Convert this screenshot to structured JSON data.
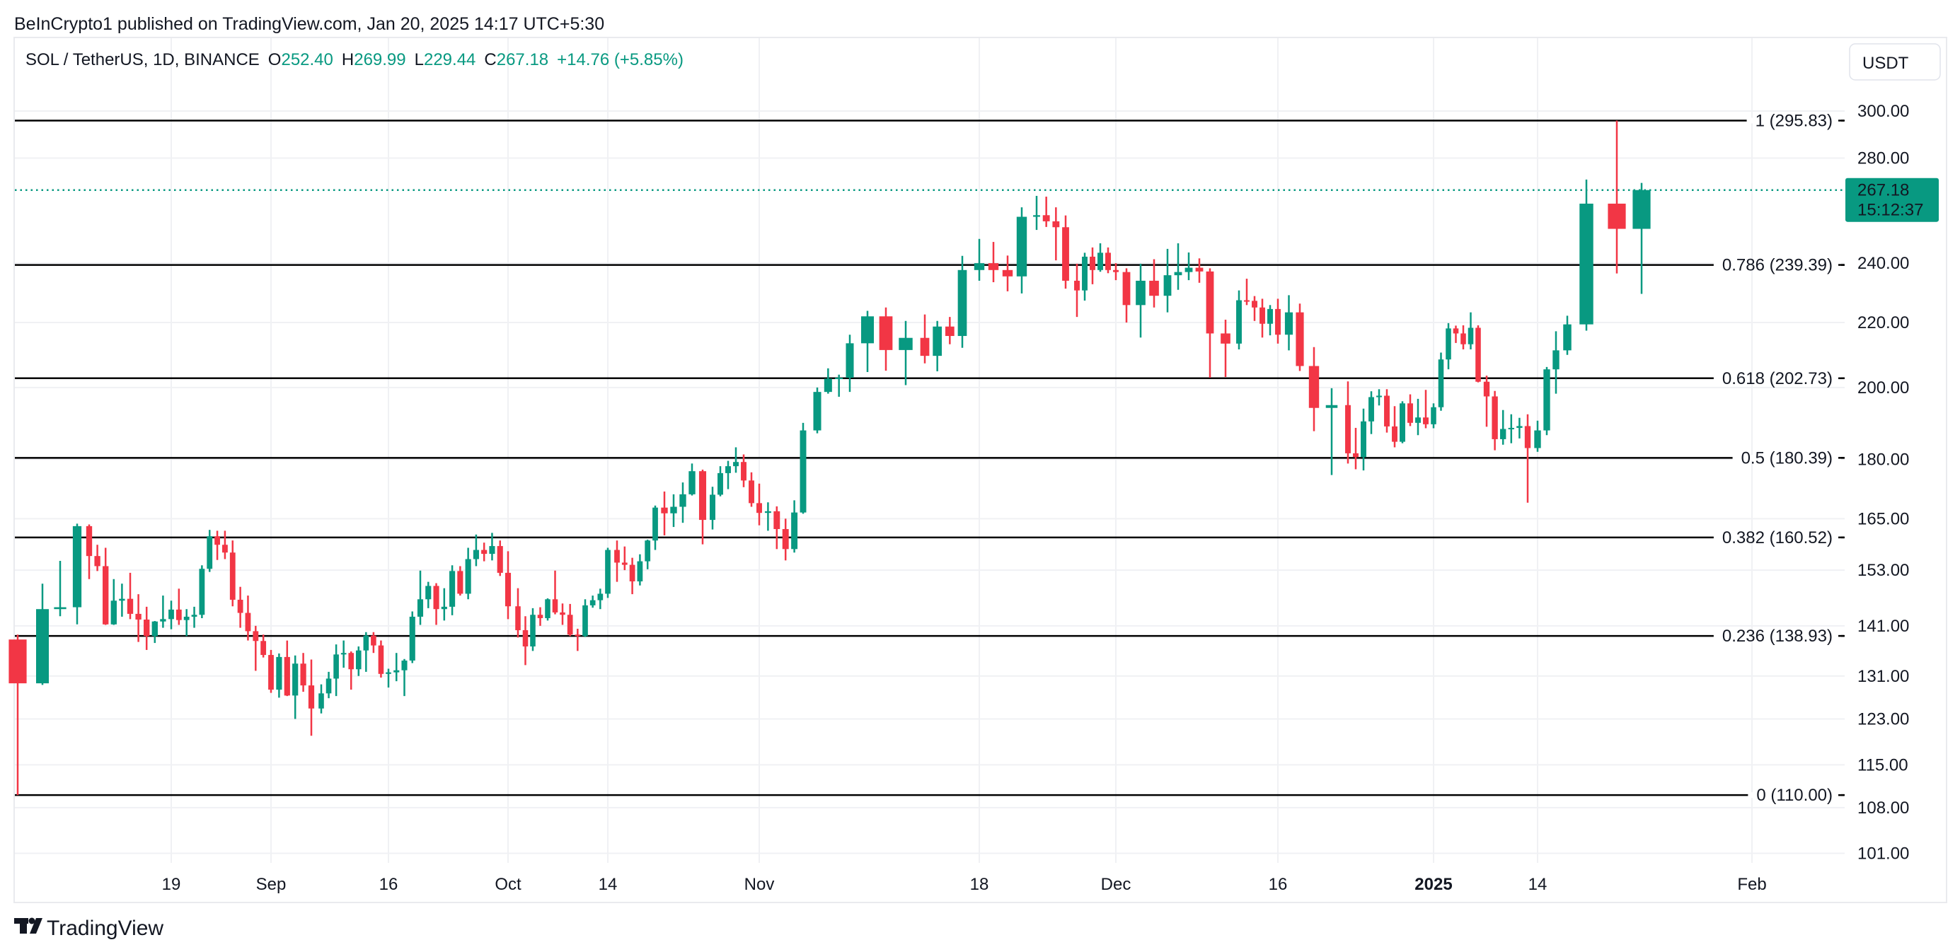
{
  "header": {
    "published": "BeInCrypto1 published on TradingView.com, Jan 20, 2025 14:17 UTC+5:30"
  },
  "legend": {
    "symbol": "SOL / TetherUS, 1D, BINANCE",
    "o_label": "O",
    "o_value": "252.40",
    "h_label": "H",
    "h_value": "269.99",
    "l_label": "L",
    "l_value": "229.44",
    "c_label": "C",
    "c_value": "267.18",
    "change": "+14.76 (+5.85%)"
  },
  "currency_button": "USDT",
  "last_price": {
    "value": "267.18",
    "countdown": "15:12:37",
    "price": 267.18
  },
  "footer": {
    "brand": "TradingView"
  },
  "colors": {
    "up": "#089981",
    "down": "#F23645",
    "fib_line": "#000000",
    "grid": "#F0F1F4",
    "text": "#131722"
  },
  "chart_data": {
    "type": "candlestick",
    "title": "SOL / TetherUS, 1D, BINANCE",
    "y_scale": "log",
    "ylim": [
      98,
      312
    ],
    "grid": true,
    "price_ticks": [
      "300.00",
      "280.00",
      "240.00",
      "220.00",
      "200.00",
      "180.00",
      "165.00",
      "153.00",
      "141.00",
      "131.00",
      "123.00",
      "115.00",
      "108.00",
      "101.00"
    ],
    "time_ticks": [
      {
        "label": "19",
        "date": "2024-08-19",
        "bold": false
      },
      {
        "label": "Sep",
        "date": "2024-09-01",
        "bold": false
      },
      {
        "label": "16",
        "date": "2024-09-16",
        "bold": false
      },
      {
        "label": "Oct",
        "date": "2024-10-01",
        "bold": false
      },
      {
        "label": "14",
        "date": "2024-10-14",
        "bold": false
      },
      {
        "label": "Nov",
        "date": "2024-11-01",
        "bold": false
      },
      {
        "label": "18",
        "date": "2024-11-18",
        "bold": false
      },
      {
        "label": "Dec",
        "date": "2024-12-01",
        "bold": false
      },
      {
        "label": "16",
        "date": "2024-12-16",
        "bold": false
      },
      {
        "label": "2025",
        "date": "2025-01-01",
        "bold": true
      },
      {
        "label": "14",
        "date": "2025-01-14",
        "bold": false
      },
      {
        "label": "Feb",
        "date": "2025-02-01",
        "bold": false
      }
    ],
    "fib_levels": [
      {
        "label": "1 (295.83)",
        "price": 295.83
      },
      {
        "label": "0.786 (239.39)",
        "price": 239.39
      },
      {
        "label": "0.618 (202.73)",
        "price": 202.73
      },
      {
        "label": "0.5 (180.39)",
        "price": 180.39
      },
      {
        "label": "0.382 (160.52)",
        "price": 160.52
      },
      {
        "label": "0.236 (138.93)",
        "price": 138.93
      },
      {
        "label": "0 (110.00)",
        "price": 110.0
      }
    ],
    "candles_columns": [
      "date",
      "open",
      "high",
      "low",
      "close"
    ],
    "candles": [
      [
        "2024-08-05",
        138.2,
        139.2,
        110.0,
        129.6
      ],
      [
        "2024-08-06",
        129.6,
        150.0,
        129.3,
        144.5
      ],
      [
        "2024-08-07",
        144.5,
        155.1,
        143.0,
        144.9
      ],
      [
        "2024-08-08",
        144.9,
        163.8,
        141.3,
        163.2
      ],
      [
        "2024-08-09",
        163.2,
        163.6,
        151.0,
        156.2
      ],
      [
        "2024-08-10",
        156.2,
        158.8,
        152.8,
        153.9
      ],
      [
        "2024-08-11",
        153.9,
        158.1,
        141.2,
        141.3
      ],
      [
        "2024-08-12",
        141.3,
        151.0,
        141.2,
        146.3
      ],
      [
        "2024-08-13",
        146.3,
        150.0,
        142.9,
        146.7
      ],
      [
        "2024-08-14",
        146.7,
        152.4,
        142.4,
        143.5
      ],
      [
        "2024-08-15",
        143.5,
        147.7,
        137.7,
        142.3
      ],
      [
        "2024-08-16",
        142.3,
        145.0,
        136.1,
        138.9
      ],
      [
        "2024-08-17",
        138.9,
        142.0,
        137.5,
        141.9
      ],
      [
        "2024-08-18",
        141.9,
        147.4,
        140.6,
        142.4
      ],
      [
        "2024-08-19",
        142.4,
        146.3,
        140.3,
        144.4
      ],
      [
        "2024-08-20",
        144.4,
        148.9,
        141.2,
        142.2
      ],
      [
        "2024-08-21",
        142.2,
        144.5,
        138.9,
        142.9
      ],
      [
        "2024-08-22",
        142.9,
        145.0,
        140.6,
        143.3
      ],
      [
        "2024-08-23",
        143.3,
        154.1,
        142.6,
        153.3
      ],
      [
        "2024-08-24",
        153.3,
        162.3,
        152.6,
        160.8
      ],
      [
        "2024-08-25",
        160.8,
        162.1,
        155.3,
        158.8
      ],
      [
        "2024-08-26",
        158.8,
        162.1,
        155.5,
        157.0
      ],
      [
        "2024-08-27",
        157.0,
        159.8,
        145.1,
        146.5
      ],
      [
        "2024-08-28",
        146.5,
        149.3,
        140.6,
        143.7
      ],
      [
        "2024-08-29",
        143.7,
        147.4,
        138.0,
        139.9
      ],
      [
        "2024-08-30",
        139.9,
        141.0,
        132.0,
        137.9
      ],
      [
        "2024-08-31",
        137.9,
        139.2,
        134.6,
        135.1
      ],
      [
        "2024-09-01",
        135.1,
        136.1,
        127.8,
        128.4
      ],
      [
        "2024-09-02",
        128.4,
        135.4,
        126.9,
        134.7
      ],
      [
        "2024-09-03",
        134.7,
        138.0,
        127.2,
        127.3
      ],
      [
        "2024-09-04",
        127.3,
        135.0,
        123.0,
        133.4
      ],
      [
        "2024-09-05",
        133.4,
        135.5,
        128.0,
        129.2
      ],
      [
        "2024-09-06",
        129.2,
        134.2,
        120.0,
        124.9
      ],
      [
        "2024-09-07",
        124.9,
        129.4,
        124.0,
        127.7
      ],
      [
        "2024-09-08",
        127.7,
        131.8,
        126.8,
        130.5
      ],
      [
        "2024-09-09",
        130.5,
        137.2,
        127.2,
        135.2
      ],
      [
        "2024-09-10",
        135.2,
        138.0,
        132.6,
        135.5
      ],
      [
        "2024-09-11",
        135.5,
        135.8,
        128.4,
        132.3
      ],
      [
        "2024-09-12",
        132.3,
        136.8,
        131.0,
        136.0
      ],
      [
        "2024-09-13",
        136.0,
        139.7,
        131.8,
        139.0
      ],
      [
        "2024-09-14",
        139.0,
        139.7,
        135.5,
        137.0
      ],
      [
        "2024-09-15",
        137.0,
        138.0,
        130.7,
        131.4
      ],
      [
        "2024-09-16",
        131.4,
        132.4,
        128.8,
        131.7
      ],
      [
        "2024-09-17",
        131.7,
        135.5,
        130.0,
        132.1
      ],
      [
        "2024-09-18",
        132.1,
        134.3,
        127.2,
        134.0
      ],
      [
        "2024-09-19",
        134.0,
        144.0,
        133.5,
        142.9
      ],
      [
        "2024-09-20",
        142.9,
        152.9,
        141.2,
        146.6
      ],
      [
        "2024-09-21",
        146.6,
        150.4,
        144.7,
        149.5
      ],
      [
        "2024-09-22",
        149.5,
        150.1,
        141.2,
        144.5
      ],
      [
        "2024-09-23",
        144.5,
        149.0,
        142.1,
        145.0
      ],
      [
        "2024-09-24",
        145.0,
        154.1,
        143.2,
        152.8
      ],
      [
        "2024-09-25",
        152.8,
        153.9,
        147.4,
        147.8
      ],
      [
        "2024-09-26",
        147.8,
        158.1,
        146.6,
        155.5
      ],
      [
        "2024-09-27",
        155.5,
        161.2,
        153.9,
        157.6
      ],
      [
        "2024-09-28",
        157.6,
        159.3,
        155.0,
        156.7
      ],
      [
        "2024-09-29",
        156.7,
        161.6,
        155.2,
        158.5
      ],
      [
        "2024-09-30",
        158.5,
        159.8,
        151.7,
        152.4
      ],
      [
        "2024-10-01",
        152.4,
        157.3,
        142.4,
        145.1
      ],
      [
        "2024-10-02",
        145.1,
        149.0,
        138.6,
        140.1
      ],
      [
        "2024-10-03",
        140.1,
        143.0,
        133.1,
        136.8
      ],
      [
        "2024-10-04",
        136.8,
        144.7,
        135.9,
        143.3
      ],
      [
        "2024-10-05",
        143.3,
        144.9,
        141.0,
        142.6
      ],
      [
        "2024-10-06",
        142.6,
        146.8,
        142.1,
        146.6
      ],
      [
        "2024-10-07",
        146.6,
        152.9,
        143.4,
        143.8
      ],
      [
        "2024-10-08",
        143.8,
        145.7,
        141.2,
        143.3
      ],
      [
        "2024-10-09",
        143.3,
        145.6,
        138.9,
        139.2
      ],
      [
        "2024-10-10",
        139.2,
        140.4,
        135.9,
        138.9
      ],
      [
        "2024-10-11",
        138.9,
        146.6,
        138.7,
        145.3
      ],
      [
        "2024-10-12",
        145.3,
        147.4,
        144.8,
        146.4
      ],
      [
        "2024-10-13",
        146.4,
        148.9,
        144.5,
        147.8
      ],
      [
        "2024-10-14",
        147.8,
        158.1,
        146.9,
        157.6
      ],
      [
        "2024-10-15",
        157.6,
        159.8,
        150.4,
        154.7
      ],
      [
        "2024-10-16",
        154.7,
        158.4,
        153.0,
        154.2
      ],
      [
        "2024-10-17",
        154.2,
        155.8,
        147.7,
        150.5
      ],
      [
        "2024-10-18",
        150.5,
        156.6,
        149.6,
        155.0
      ],
      [
        "2024-10-19",
        155.0,
        160.0,
        153.2,
        159.8
      ],
      [
        "2024-10-20",
        159.8,
        168.2,
        157.6,
        167.7
      ],
      [
        "2024-10-21",
        167.7,
        171.7,
        161.0,
        166.3
      ],
      [
        "2024-10-22",
        166.3,
        171.0,
        163.0,
        167.9
      ],
      [
        "2024-10-23",
        167.9,
        174.0,
        164.0,
        171.0
      ],
      [
        "2024-10-24",
        171.0,
        178.9,
        170.7,
        176.9
      ],
      [
        "2024-10-25",
        176.9,
        177.3,
        158.9,
        164.7
      ],
      [
        "2024-10-26",
        164.7,
        172.9,
        162.4,
        170.9
      ],
      [
        "2024-10-27",
        170.9,
        178.2,
        170.5,
        176.4
      ],
      [
        "2024-10-28",
        176.4,
        179.6,
        172.3,
        178.2
      ],
      [
        "2024-10-29",
        178.2,
        183.2,
        176.5,
        179.3
      ],
      [
        "2024-10-30",
        179.3,
        181.3,
        172.8,
        174.5
      ],
      [
        "2024-10-31",
        174.5,
        176.6,
        167.9,
        168.8
      ],
      [
        "2024-11-01",
        168.8,
        173.7,
        163.4,
        166.4
      ],
      [
        "2024-11-02",
        166.4,
        169.0,
        162.1,
        166.8
      ],
      [
        "2024-11-03",
        166.8,
        168.0,
        157.8,
        162.5
      ],
      [
        "2024-11-04",
        162.5,
        165.0,
        155.2,
        157.8
      ],
      [
        "2024-11-05",
        157.8,
        169.5,
        157.0,
        166.5
      ],
      [
        "2024-11-06",
        166.5,
        189.9,
        166.2,
        187.8
      ],
      [
        "2024-11-07",
        187.8,
        200.0,
        187.0,
        198.7
      ],
      [
        "2024-11-08",
        198.7,
        205.7,
        198.2,
        202.6
      ],
      [
        "2024-11-09",
        202.6,
        203.8,
        197.3,
        202.9
      ],
      [
        "2024-11-10",
        202.9,
        216.1,
        198.7,
        213.4
      ],
      [
        "2024-11-11",
        213.4,
        223.8,
        204.6,
        222.0
      ],
      [
        "2024-11-12",
        222.0,
        224.9,
        205.0,
        211.3
      ],
      [
        "2024-11-13",
        211.3,
        220.5,
        200.7,
        215.1
      ],
      [
        "2024-11-14",
        215.1,
        222.6,
        207.2,
        209.5
      ],
      [
        "2024-11-15",
        209.5,
        220.5,
        204.8,
        218.7
      ],
      [
        "2024-11-16",
        218.7,
        221.8,
        213.1,
        215.7
      ],
      [
        "2024-11-17",
        215.7,
        242.6,
        212.0,
        237.6
      ],
      [
        "2024-11-18",
        237.6,
        248.7,
        233.9,
        240.0
      ],
      [
        "2024-11-19",
        240.0,
        247.6,
        233.4,
        237.6
      ],
      [
        "2024-11-20",
        237.6,
        242.7,
        230.3,
        235.4
      ],
      [
        "2024-11-21",
        235.4,
        260.5,
        229.6,
        256.9
      ],
      [
        "2024-11-22",
        256.9,
        264.9,
        252.0,
        257.5
      ],
      [
        "2024-11-23",
        257.5,
        264.6,
        253.1,
        255.2
      ],
      [
        "2024-11-24",
        255.2,
        260.5,
        241.0,
        253.0
      ],
      [
        "2024-11-25",
        253.0,
        257.4,
        231.2,
        233.9
      ],
      [
        "2024-11-26",
        233.9,
        239.8,
        221.8,
        230.6
      ],
      [
        "2024-11-27",
        230.6,
        243.7,
        227.2,
        242.3
      ],
      [
        "2024-11-28",
        242.3,
        245.6,
        232.7,
        237.6
      ],
      [
        "2024-11-29",
        237.6,
        247.1,
        237.0,
        243.7
      ],
      [
        "2024-11-30",
        243.7,
        245.6,
        236.5,
        237.6
      ],
      [
        "2024-12-01",
        237.6,
        240.0,
        234.1,
        236.9
      ],
      [
        "2024-12-02",
        236.9,
        238.2,
        220.0,
        225.7
      ],
      [
        "2024-12-03",
        225.7,
        239.8,
        215.2,
        233.9
      ],
      [
        "2024-12-04",
        233.9,
        241.4,
        224.9,
        228.8
      ],
      [
        "2024-12-05",
        228.8,
        245.1,
        223.3,
        235.8
      ],
      [
        "2024-12-06",
        235.8,
        247.1,
        230.8,
        236.9
      ],
      [
        "2024-12-07",
        236.9,
        243.8,
        234.1,
        238.4
      ],
      [
        "2024-12-08",
        238.4,
        241.7,
        233.2,
        237.1
      ],
      [
        "2024-12-09",
        237.1,
        238.2,
        202.9,
        216.5
      ],
      [
        "2024-12-10",
        216.5,
        220.9,
        203.1,
        213.3
      ],
      [
        "2024-12-11",
        213.3,
        230.6,
        211.5,
        227.3
      ],
      [
        "2024-12-12",
        227.3,
        234.6,
        225.7,
        227.1
      ],
      [
        "2024-12-13",
        227.1,
        228.7,
        220.5,
        224.9
      ],
      [
        "2024-12-14",
        224.9,
        227.8,
        215.2,
        219.6
      ],
      [
        "2024-12-15",
        219.6,
        225.7,
        215.9,
        224.4
      ],
      [
        "2024-12-16",
        224.4,
        227.8,
        213.3,
        216.1
      ],
      [
        "2024-12-17",
        216.1,
        229.0,
        211.2,
        223.3
      ],
      [
        "2024-12-18",
        223.3,
        226.2,
        204.9,
        206.4
      ],
      [
        "2024-12-19",
        206.4,
        212.2,
        187.6,
        194.1
      ],
      [
        "2024-12-20",
        194.1,
        199.8,
        175.9,
        194.9
      ],
      [
        "2024-12-21",
        194.9,
        201.8,
        178.9,
        181.6
      ],
      [
        "2024-12-22",
        181.6,
        188.5,
        177.4,
        180.6
      ],
      [
        "2024-12-23",
        180.6,
        193.9,
        177.1,
        190.3
      ],
      [
        "2024-12-24",
        190.3,
        198.9,
        186.8,
        197.2
      ],
      [
        "2024-12-25",
        197.2,
        199.5,
        194.8,
        197.6
      ],
      [
        "2024-12-26",
        197.6,
        199.5,
        187.2,
        188.9
      ],
      [
        "2024-12-27",
        188.9,
        194.6,
        183.2,
        184.7
      ],
      [
        "2024-12-28",
        184.7,
        196.0,
        184.3,
        195.4
      ],
      [
        "2024-12-29",
        195.4,
        198.0,
        189.0,
        189.9
      ],
      [
        "2024-12-30",
        189.9,
        196.7,
        186.5,
        191.4
      ],
      [
        "2024-12-31",
        191.4,
        199.3,
        188.4,
        189.5
      ],
      [
        "2025-01-01",
        189.5,
        195.4,
        188.4,
        194.3
      ],
      [
        "2025-01-02",
        194.3,
        210.5,
        193.3,
        208.4
      ],
      [
        "2025-01-03",
        208.4,
        219.8,
        205.4,
        218.1
      ],
      [
        "2025-01-04",
        218.1,
        219.0,
        213.5,
        216.5
      ],
      [
        "2025-01-05",
        216.5,
        219.1,
        211.5,
        213.1
      ],
      [
        "2025-01-06",
        213.1,
        223.3,
        211.5,
        218.3
      ],
      [
        "2025-01-07",
        218.3,
        219.1,
        201.5,
        201.7
      ],
      [
        "2025-01-08",
        201.7,
        203.5,
        188.8,
        197.4
      ],
      [
        "2025-01-09",
        197.4,
        199.0,
        182.4,
        185.4
      ],
      [
        "2025-01-10",
        185.4,
        193.5,
        183.9,
        188.2
      ],
      [
        "2025-01-11",
        188.2,
        192.3,
        184.3,
        188.5
      ],
      [
        "2025-01-12",
        188.5,
        191.3,
        185.6,
        189.0
      ],
      [
        "2025-01-13",
        189.0,
        192.3,
        168.9,
        183.0
      ],
      [
        "2025-01-14",
        183.0,
        190.5,
        182.0,
        187.8
      ],
      [
        "2025-01-15",
        187.8,
        206.1,
        186.5,
        205.4
      ],
      [
        "2025-01-16",
        205.4,
        217.2,
        198.2,
        211.2
      ],
      [
        "2025-01-17",
        211.2,
        222.2,
        209.8,
        219.4
      ],
      [
        "2025-01-18",
        219.4,
        271.3,
        217.4,
        261.9
      ],
      [
        "2025-01-19",
        261.9,
        295.83,
        236.4,
        252.4
      ],
      [
        "2025-01-20",
        252.4,
        269.99,
        229.44,
        267.18
      ]
    ]
  }
}
